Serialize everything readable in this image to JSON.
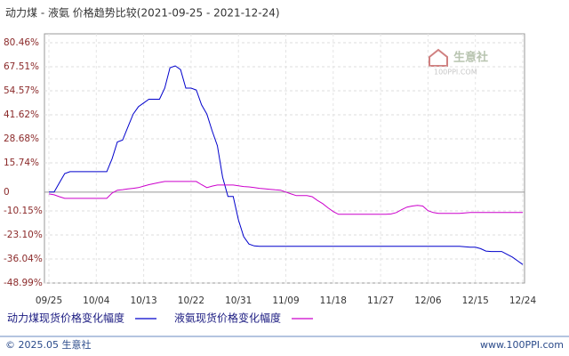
{
  "chart_data": {
    "type": "line",
    "title": "动力煤 - 液氨 价格趋势比较(2021-09-25 - 2021-12-24)",
    "watermark": "生意社",
    "watermark_sub": "100PPI.COM",
    "footer_left": "© 2025.05 生意社",
    "footer_right": "www.100PPI.com",
    "categories": [
      "09/25",
      null,
      null,
      null,
      null,
      null,
      null,
      null,
      null,
      "10/04",
      null,
      null,
      null,
      null,
      null,
      null,
      null,
      null,
      "10/13",
      null,
      null,
      null,
      null,
      null,
      null,
      null,
      null,
      "10/22",
      null,
      null,
      null,
      null,
      null,
      null,
      null,
      null,
      "10/31",
      null,
      null,
      null,
      null,
      null,
      null,
      null,
      null,
      "11/09",
      null,
      null,
      null,
      null,
      null,
      null,
      null,
      null,
      "11/18",
      null,
      null,
      null,
      null,
      null,
      null,
      null,
      null,
      "11/27",
      null,
      null,
      null,
      null,
      null,
      null,
      null,
      null,
      "12/06",
      null,
      null,
      null,
      null,
      null,
      null,
      null,
      null,
      "12/15",
      null,
      null,
      null,
      null,
      null,
      null,
      null,
      null,
      "12/24"
    ],
    "series": [
      {
        "name": "动力煤现货价格变化幅度",
        "color": "#0000cc",
        "values": [
          0,
          0,
          5,
          10,
          11,
          11,
          11,
          11,
          11,
          11,
          11,
          11,
          18,
          27,
          28,
          35,
          42,
          46,
          48,
          50,
          50,
          50,
          56,
          67,
          68,
          66,
          56,
          56,
          55,
          47,
          42,
          33,
          25,
          8,
          -2.4,
          -2.4,
          -15,
          -24,
          -28,
          -29,
          -29.2,
          -29.2,
          -29.2,
          -29.2,
          -29.2,
          -29.2,
          -29.2,
          -29.2,
          -29.2,
          -29.2,
          -29.2,
          -29.2,
          -29.2,
          -29.2,
          -29.2,
          -29.2,
          -29.2,
          -29.2,
          -29.2,
          -29.2,
          -29.2,
          -29.2,
          -29.2,
          -29.2,
          -29.2,
          -29.2,
          -29.2,
          -29.2,
          -29.2,
          -29.2,
          -29.2,
          -29.2,
          -29.2,
          -29.2,
          -29.2,
          -29.2,
          -29.2,
          -29.2,
          -29.2,
          -29.5,
          -29.7,
          -29.7,
          -30.5,
          -31.8,
          -32,
          -32,
          -32,
          -33.5,
          -35,
          -37,
          -39
        ]
      },
      {
        "name": "液氨现货价格变化幅度",
        "color": "#cc00cc",
        "values": [
          -1,
          -1.5,
          -2.5,
          -3.4,
          -3.4,
          -3.4,
          -3.4,
          -3.4,
          -3.4,
          -3.4,
          -3.4,
          -3.4,
          -0.5,
          1,
          1.3,
          1.7,
          2,
          2.4,
          3.2,
          4,
          4.6,
          5.2,
          5.7,
          5.7,
          5.7,
          5.7,
          5.7,
          5.7,
          5.7,
          4,
          2.4,
          3.2,
          3.8,
          3.8,
          3.8,
          3.8,
          3.4,
          3,
          2.8,
          2.4,
          2,
          1.8,
          1.5,
          1.2,
          1,
          0,
          -1,
          -1.9,
          -1.9,
          -1.9,
          -2.5,
          -4.5,
          -6.2,
          -8.5,
          -10.5,
          -12,
          -12,
          -12,
          -12,
          -12,
          -12,
          -12,
          -12,
          -12,
          -12,
          -11.8,
          -11,
          -9.5,
          -8.1,
          -7.5,
          -7.2,
          -7.5,
          -10,
          -11,
          -11.5,
          -11.5,
          -11.5,
          -11.5,
          -11.5,
          -11.2,
          -11,
          -11,
          -11,
          -11,
          -11,
          -11,
          -11,
          -11,
          -11,
          -11,
          -11
        ]
      }
    ],
    "ylim": [
      -48.99,
      80.46
    ],
    "yticks": [
      {
        "value": 80.46,
        "label": "80.46%"
      },
      {
        "value": 67.51,
        "label": "67.51%"
      },
      {
        "value": 54.57,
        "label": "54.57%"
      },
      {
        "value": 41.62,
        "label": "41.62%"
      },
      {
        "value": 28.68,
        "label": "28.68%"
      },
      {
        "value": 15.74,
        "label": "15.74%"
      },
      0,
      {
        "value": -10.15,
        "label": "-10.15%"
      },
      {
        "value": -23.1,
        "label": "-23.10%"
      },
      {
        "value": -36.04,
        "label": "-36.04%"
      },
      {
        "value": -48.99,
        "label": "-48.99%"
      }
    ],
    "grid": true
  }
}
